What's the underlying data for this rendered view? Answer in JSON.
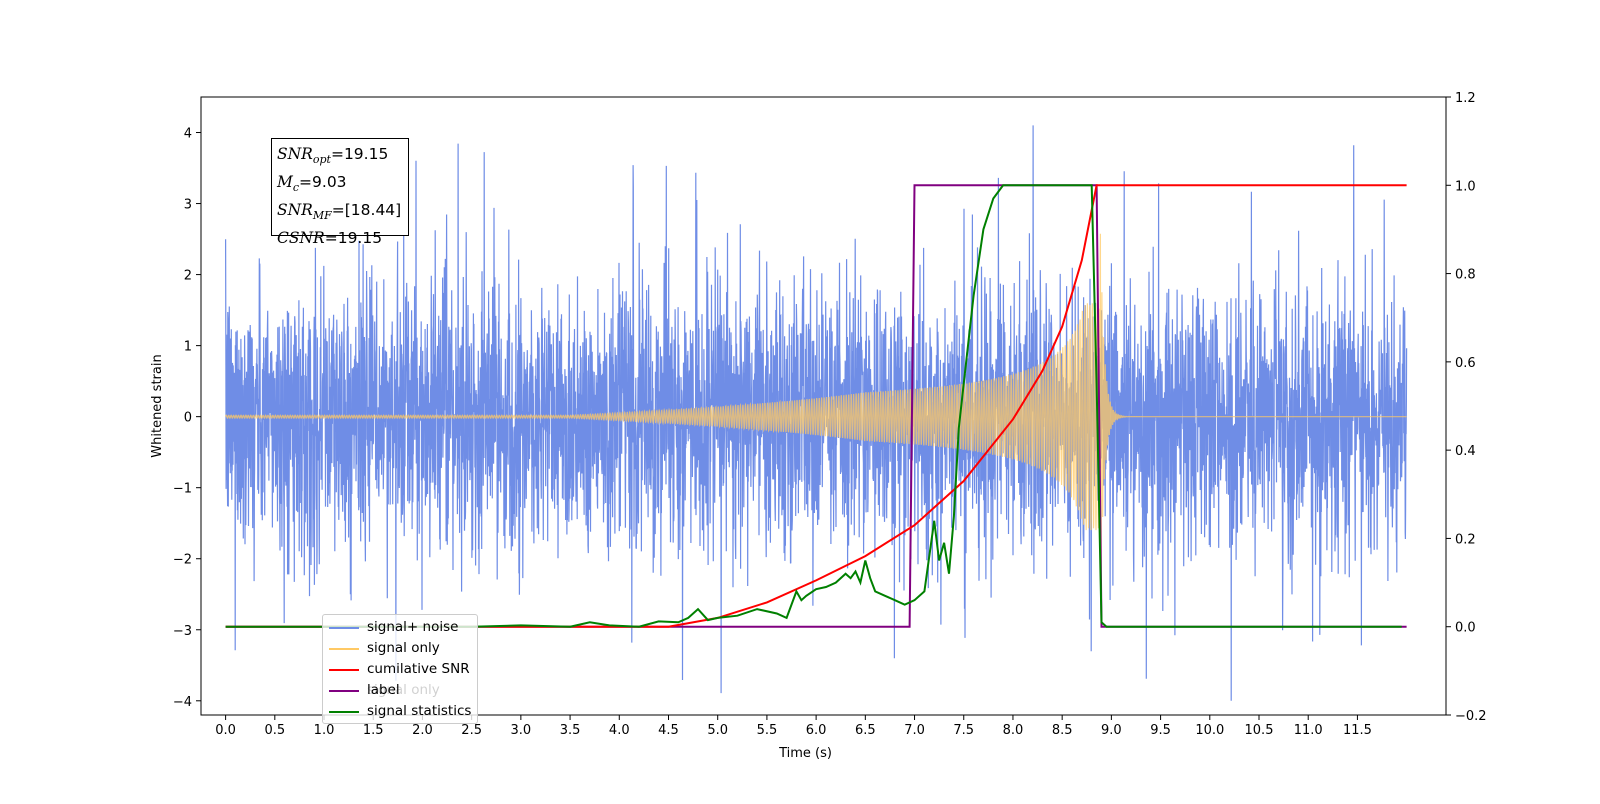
{
  "chart_data": {
    "type": "line",
    "xlabel": "Time (s)",
    "ylabel": "Whitened strain",
    "xlim": [
      -0.25,
      12.4
    ],
    "ylim": [
      -4.2,
      4.5
    ],
    "y2lim": [
      -0.2,
      1.2
    ],
    "x_ticks": [
      "0.0",
      "0.5",
      "1.0",
      "1.5",
      "2.0",
      "2.5",
      "3.0",
      "3.5",
      "4.0",
      "4.5",
      "5.0",
      "5.5",
      "6.0",
      "6.5",
      "7.0",
      "7.5",
      "8.0",
      "8.5",
      "9.0",
      "9.5",
      "10.0",
      "10.5",
      "11.0",
      "11.5"
    ],
    "y_ticks": [
      "4",
      "3",
      "2",
      "1",
      "0",
      "−1",
      "−2",
      "−3",
      "−4"
    ],
    "y2_ticks": [
      "1.2",
      "1.0",
      "0.8",
      "0.6",
      "0.4",
      "0.2",
      "0.0",
      "−0.2"
    ],
    "annotation": {
      "snr_opt_label": "SNR",
      "snr_opt_sub": "opt",
      "snr_opt_value": "=19.15",
      "mc_label": "M",
      "mc_sub": "c",
      "mc_value": "=9.03",
      "snr_mf_label": "SNR",
      "snr_mf_sub": "MF",
      "snr_mf_value": "=[18.44]",
      "csnr_label": "CSNR",
      "csnr_value": "=19.15"
    },
    "series": [
      {
        "name": "signal+ noise",
        "color": "#6f8de6",
        "axis": "left",
        "desc": "whitened noise plus signal, amplitude about ±2 with spikes to ±4, t from 0.0 to 12.0"
      },
      {
        "name": "signal only",
        "color": "#ffc964",
        "axis": "left",
        "desc": "chirp growing from t≈4.5 to peak ≈±1.5 at t≈8.85, then ringdown"
      },
      {
        "name": "cumilative SNR",
        "color": "#ff0000",
        "axis": "right",
        "x": [
          0.0,
          4.5,
          5.0,
          5.5,
          6.0,
          6.5,
          7.0,
          7.5,
          8.0,
          8.3,
          8.5,
          8.7,
          8.85,
          8.87,
          12.0
        ],
        "values": [
          0.0,
          0.0,
          0.02,
          0.055,
          0.105,
          0.16,
          0.23,
          0.33,
          0.47,
          0.58,
          0.68,
          0.83,
          1.0,
          1.0,
          1.0
        ]
      },
      {
        "name": "label",
        "color": "#800080",
        "axis": "right",
        "x": [
          0.0,
          6.95,
          7.0,
          8.85,
          8.9,
          12.0
        ],
        "values": [
          0.0,
          0.0,
          1.0,
          1.0,
          0.0,
          0.0
        ]
      },
      {
        "name": "signal statistics",
        "color": "#008000",
        "axis": "right",
        "x": [
          0.0,
          2.5,
          3.0,
          3.5,
          3.7,
          3.9,
          4.2,
          4.4,
          4.6,
          4.7,
          4.8,
          4.9,
          5.0,
          5.2,
          5.4,
          5.6,
          5.7,
          5.8,
          5.85,
          5.9,
          6.0,
          6.1,
          6.2,
          6.3,
          6.35,
          6.4,
          6.45,
          6.5,
          6.55,
          6.6,
          6.7,
          6.8,
          6.9,
          7.0,
          7.1,
          7.2,
          7.25,
          7.3,
          7.35,
          7.4,
          7.45,
          7.5,
          7.6,
          7.7,
          7.8,
          7.9,
          8.0,
          8.5,
          8.8,
          8.85,
          8.9,
          8.95,
          11.95
        ],
        "values": [
          0.0,
          0.0,
          0.003,
          0.0,
          0.01,
          0.003,
          0.0,
          0.012,
          0.01,
          0.02,
          0.04,
          0.015,
          0.02,
          0.025,
          0.04,
          0.03,
          0.02,
          0.08,
          0.06,
          0.07,
          0.085,
          0.09,
          0.1,
          0.12,
          0.11,
          0.125,
          0.1,
          0.15,
          0.11,
          0.08,
          0.07,
          0.06,
          0.05,
          0.06,
          0.08,
          0.24,
          0.15,
          0.19,
          0.12,
          0.25,
          0.45,
          0.55,
          0.75,
          0.9,
          0.97,
          1.0,
          1.0,
          1.0,
          1.0,
          0.55,
          0.01,
          0.0,
          0.0
        ]
      }
    ],
    "legend_entries": [
      "signal+ noise",
      "signal only",
      "cumilative SNR",
      "label",
      "signal statistics"
    ],
    "legend_obscured_text": "signal only",
    "legend_position": "lower-left"
  }
}
